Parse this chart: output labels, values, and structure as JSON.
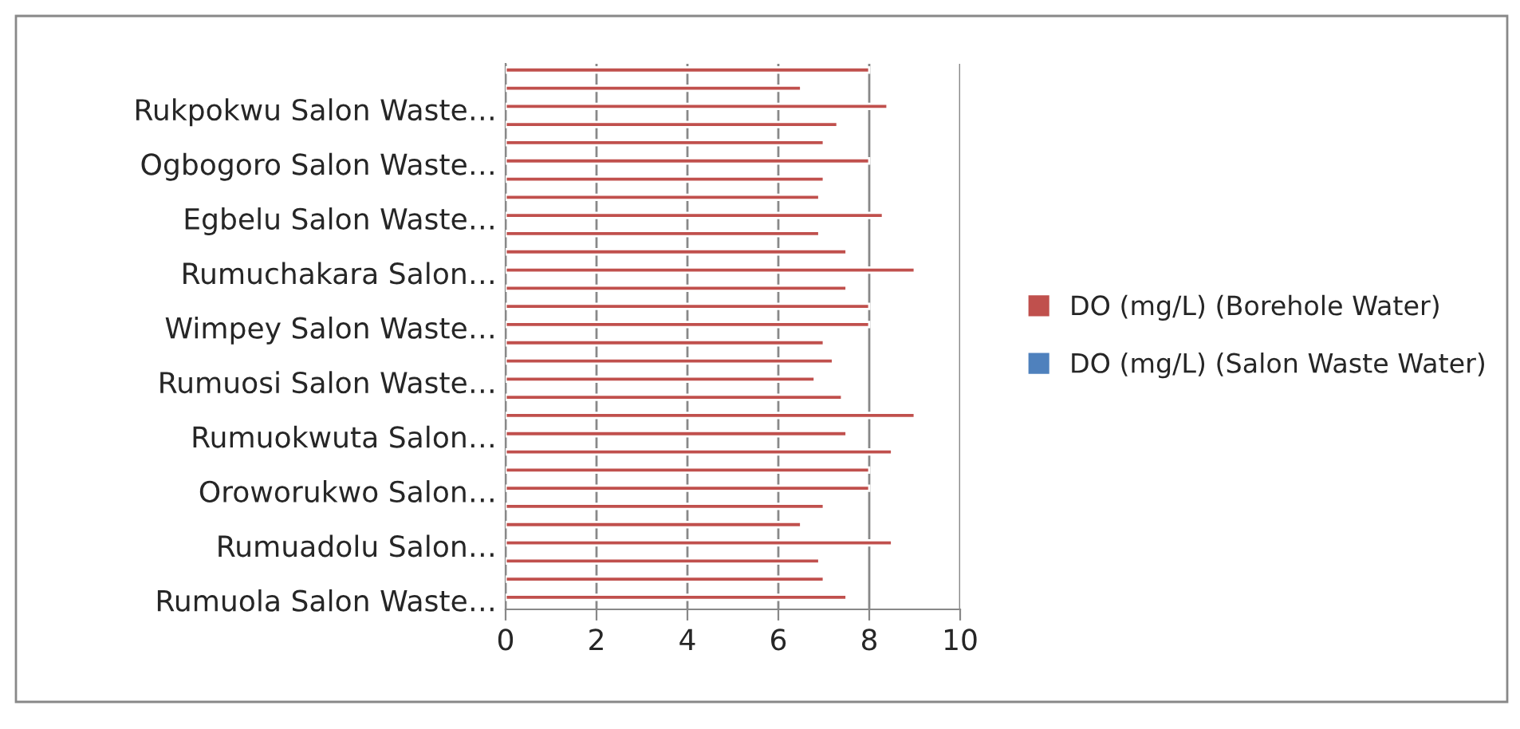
{
  "chart_data": {
    "type": "bar",
    "orientation": "horizontal",
    "categories": [
      null,
      null,
      "Rukpokwu Salon Waste…",
      null,
      null,
      "Ogbogoro Salon Waste…",
      null,
      null,
      "Egbelu Salon Waste…",
      null,
      null,
      "Rumuchakara Salon…",
      null,
      null,
      "Wimpey Salon Waste…",
      null,
      null,
      "Rumuosi Salon Waste…",
      null,
      null,
      "Rumuokwuta Salon…",
      null,
      null,
      "Oroworukwo Salon…",
      null,
      null,
      "Rumuadolu Salon…",
      null,
      null,
      "Rumuola Salon Waste…"
    ],
    "series": [
      {
        "name": "DO (mg/L) (Borehole Water)",
        "color": "#c0504d",
        "values": [
          8.0,
          6.5,
          8.4,
          7.3,
          7.0,
          8.0,
          7.0,
          6.9,
          8.3,
          6.9,
          7.5,
          9.0,
          7.5,
          8.0,
          8.0,
          7.0,
          7.2,
          6.8,
          7.4,
          9.0,
          7.5,
          8.5,
          8.0,
          8.0,
          7.0,
          6.5,
          8.5,
          6.9,
          7.0,
          7.5
        ]
      },
      {
        "name": "DO (mg/L) (Salon Waste Water)",
        "color": "#4f81bd",
        "values": [
          null,
          null,
          null,
          null,
          null,
          null,
          null,
          null,
          null,
          null,
          null,
          null,
          null,
          null,
          null,
          null,
          null,
          null,
          null,
          null,
          null,
          null,
          null,
          null,
          null,
          null,
          null,
          null,
          null,
          null
        ]
      }
    ],
    "xlim": [
      0,
      10
    ],
    "xticks": [
      0,
      2,
      4,
      6,
      8,
      10
    ],
    "grid": "x",
    "legend": "right"
  }
}
